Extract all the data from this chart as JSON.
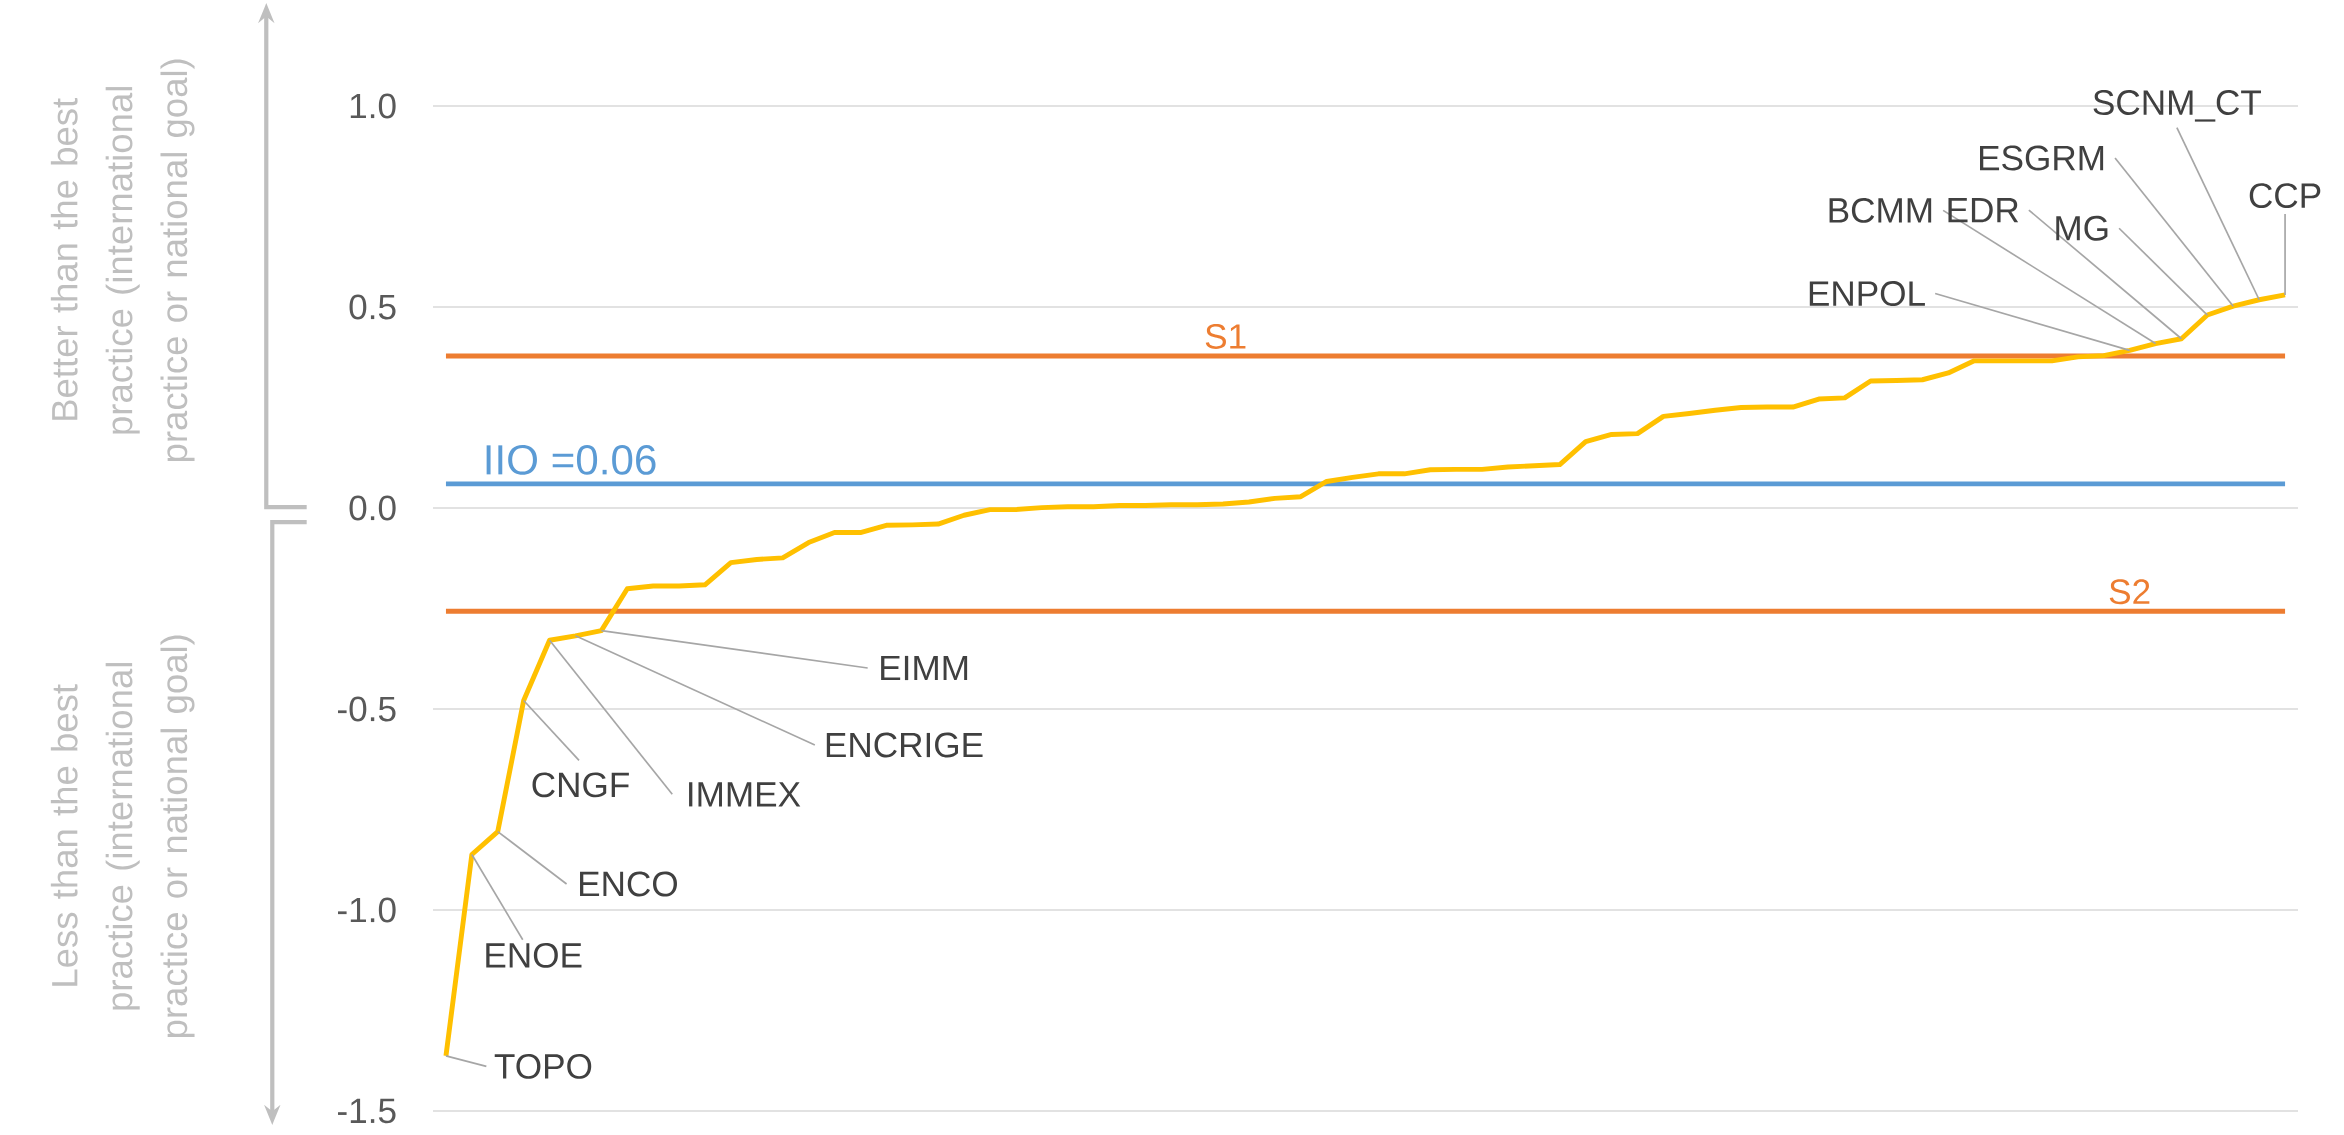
{
  "chart_data": {
    "type": "line",
    "categories": [
      null,
      null,
      null,
      null,
      null,
      null,
      null,
      null,
      null,
      null,
      null,
      null,
      null,
      null,
      null,
      null,
      null,
      null,
      null,
      null,
      null,
      null,
      null,
      null,
      null,
      null,
      null,
      null,
      null,
      null,
      null,
      null,
      null,
      null,
      null,
      null,
      null,
      null,
      null,
      null,
      null,
      null,
      null,
      null,
      null,
      null,
      null,
      null,
      null,
      null,
      null,
      null,
      null,
      null,
      null,
      null,
      null,
      null,
      null,
      null,
      null,
      null,
      null,
      null,
      null,
      null,
      null,
      null,
      null,
      null,
      null,
      null
    ],
    "values": [
      -1.363,
      -0.862,
      -0.805,
      -0.479,
      -0.329,
      -0.318,
      -0.305,
      -0.201,
      -0.194,
      -0.194,
      -0.191,
      -0.136,
      -0.128,
      -0.124,
      -0.086,
      -0.061,
      -0.061,
      -0.043,
      -0.042,
      -0.04,
      -0.018,
      -0.004,
      -0.004,
      0.001,
      0.003,
      0.003,
      0.006,
      0.006,
      0.008,
      0.008,
      0.01,
      0.015,
      0.024,
      0.028,
      0.066,
      0.076,
      0.085,
      0.085,
      0.095,
      0.096,
      0.096,
      0.102,
      0.105,
      0.108,
      0.165,
      0.183,
      0.185,
      0.228,
      0.235,
      0.243,
      0.25,
      0.251,
      0.251,
      0.271,
      0.274,
      0.316,
      0.317,
      0.319,
      0.336,
      0.366,
      0.366,
      0.366,
      0.366,
      0.376,
      0.379,
      0.392,
      0.409,
      0.421,
      0.48,
      0.502,
      0.518,
      0.53
    ],
    "color": "#ffc000",
    "ylim": [
      -1.5,
      1.0
    ],
    "yticks": [
      {
        "value": -1.5,
        "label": "-1.5"
      },
      {
        "value": -1.0,
        "label": "-1.0"
      },
      {
        "value": -0.5,
        "label": "-0.5"
      },
      {
        "value": 0.0,
        "label": "0.0"
      },
      {
        "value": 0.5,
        "label": "0.5"
      },
      {
        "value": 1.0,
        "label": "1.0"
      }
    ],
    "grid": "y",
    "ref_lines": [
      {
        "axis": "y",
        "value": 0.378,
        "label": "S1",
        "color": "#ed7d31"
      },
      {
        "axis": "y",
        "value": -0.257,
        "label": "S2",
        "color": "#ed7d31"
      },
      {
        "axis": "y",
        "value": 0.06,
        "label": "IIO =0.06",
        "color": "#5b9bd5"
      }
    ],
    "annotations": [
      "Better than the best practice (international practice or national goal)",
      "Less than the best practice (international practice or national goal)",
      "TOPO",
      "ENOE",
      "ENCO",
      "CNGF",
      "IMMEX",
      "ENCRIGE",
      "EIMM",
      "ENPOL",
      "BCMM",
      "EDR",
      "MG",
      "ESGRM",
      "SCNM_CT",
      "CCP"
    ]
  }
}
